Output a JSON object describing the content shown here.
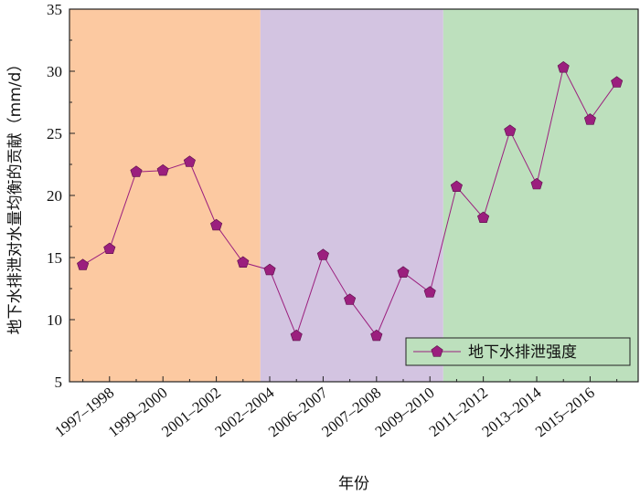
{
  "chart_data": {
    "type": "line",
    "title": "",
    "xlabel": "年份",
    "ylabel": "地下水排泄对水量均衡的贡献（mm/d）",
    "ylim": [
      5,
      35
    ],
    "yticks": [
      5,
      10,
      15,
      20,
      25,
      30,
      35
    ],
    "x_tick_labels": [
      "1997–1998",
      "1999–2000",
      "2001–2002",
      "2002–2004",
      "2006–2007",
      "2007–2008",
      "2009–2010",
      "2011–2012",
      "2013–2014",
      "2015–2016"
    ],
    "series": [
      {
        "name": "地下水排泄强度",
        "values": [
          14.4,
          15.7,
          21.9,
          22.0,
          22.7,
          17.6,
          14.6,
          14.0,
          8.7,
          15.2,
          11.6,
          8.7,
          13.8,
          12.2,
          20.7,
          18.2,
          25.2,
          20.9,
          30.3,
          26.1,
          29.1
        ],
        "color": "#9b1f7e",
        "marker": "pentagon"
      }
    ],
    "background_bands": [
      {
        "period": "1997–2003",
        "color": "#fcc9a1"
      },
      {
        "period": "2003–2010",
        "color": "#d3c4e1"
      },
      {
        "period": "2010–2017",
        "color": "#bde0bd"
      }
    ],
    "legend": {
      "position": "lower-right",
      "entries": [
        "地下水排泄强度"
      ]
    },
    "grid": false
  }
}
